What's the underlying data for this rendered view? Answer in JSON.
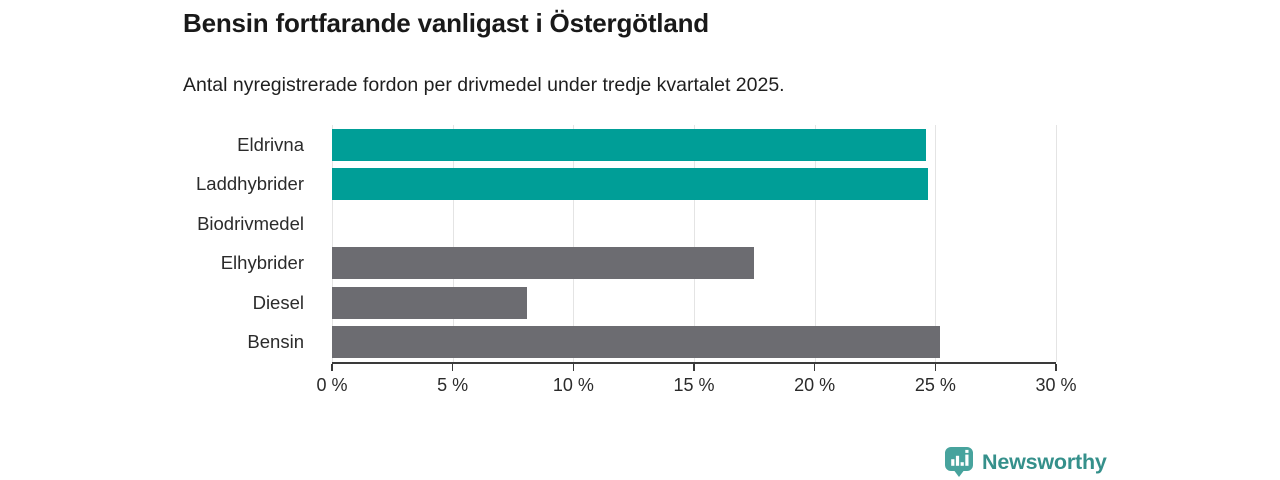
{
  "header": {
    "title": "Bensin fortfarande vanligast i Östergötland",
    "subtitle": "Antal nyregistrerade fordon per drivmedel under tredje kvartalet 2025."
  },
  "chart_data": {
    "type": "bar",
    "orientation": "horizontal",
    "title": "Bensin fortfarande vanligast i Östergötland",
    "subtitle": "Antal nyregistrerade fordon per drivmedel under tredje kvartalet 2025.",
    "categories": [
      "Eldrivna",
      "Laddhybrider",
      "Biodrivmedel",
      "Elhybrider",
      "Diesel",
      "Bensin"
    ],
    "values": [
      24.6,
      24.7,
      0,
      17.5,
      8.1,
      25.2
    ],
    "unit": "%",
    "bar_colors": [
      "#009E97",
      "#009E97",
      "#009E97",
      "#6C6C71",
      "#6C6C71",
      "#6C6C71"
    ],
    "xlim": [
      0,
      30
    ],
    "xticks": [
      0,
      5,
      10,
      15,
      20,
      25,
      30
    ],
    "xtick_labels": [
      "0 %",
      "5 %",
      "10 %",
      "15 %",
      "20 %",
      "25 %",
      "30 %"
    ],
    "grid": "vertical-light",
    "xlabel": "",
    "ylabel": "",
    "legend": "none",
    "accent_color": "#009E97",
    "neutral_color": "#6C6C71"
  },
  "footer": {
    "brand": "Newsworthy",
    "logo_icon": "bar-chart-speech-bubble-icon",
    "brand_text_color": "#35908B",
    "icon_color": "#47A39D"
  }
}
